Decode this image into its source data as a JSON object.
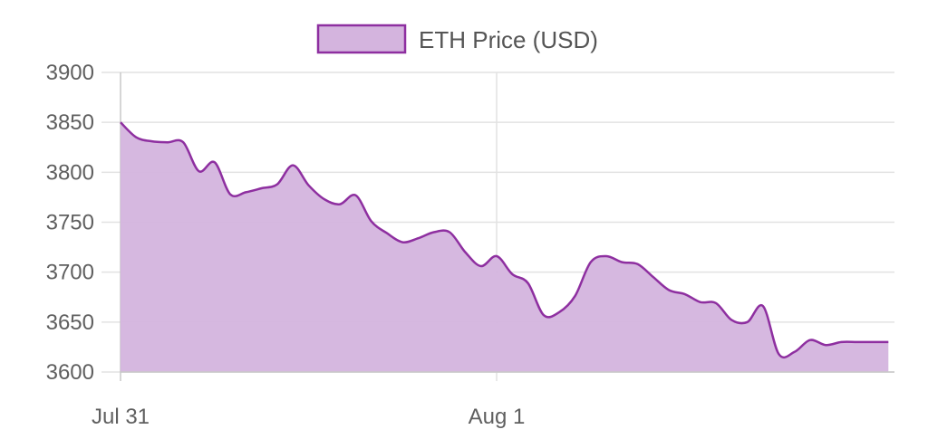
{
  "chart_data": {
    "type": "area",
    "title": "",
    "xlabel": "",
    "ylabel": "",
    "ylim": [
      3600,
      3900
    ],
    "y_ticks": [
      3900,
      3850,
      3800,
      3750,
      3700,
      3650,
      3600
    ],
    "x_ticks": [
      {
        "label": "Jul 31",
        "value": 0
      },
      {
        "label": "Aug 1",
        "value": 24
      }
    ],
    "legend": {
      "position": "top-center",
      "label": "ETH Price (USD)"
    },
    "grid": true,
    "colors": {
      "line": "#8e2fa0",
      "fill": "#d4b4de",
      "grid": "#e2e2e2",
      "axis": "#c8c8c8"
    },
    "series": [
      {
        "name": "ETH Price (USD)",
        "x": [
          0,
          1,
          2,
          3,
          4,
          5,
          6,
          7,
          8,
          9,
          10,
          11,
          12,
          13,
          14,
          15,
          16,
          17,
          18,
          19,
          20,
          21,
          22,
          23,
          24,
          25,
          26,
          27,
          28,
          29,
          30,
          31,
          32,
          33,
          34,
          35,
          36,
          37,
          38,
          39,
          40,
          41,
          42,
          43,
          44,
          45,
          46,
          47,
          48,
          49
        ],
        "y": [
          3850,
          3835,
          3831,
          3830,
          3830,
          3801,
          3810,
          3778,
          3780,
          3784,
          3788,
          3807,
          3787,
          3773,
          3768,
          3777,
          3751,
          3739,
          3730,
          3734,
          3740,
          3740,
          3720,
          3706,
          3716,
          3698,
          3689,
          3657,
          3660,
          3676,
          3710,
          3716,
          3710,
          3708,
          3695,
          3682,
          3678,
          3670,
          3669,
          3652,
          3650,
          3666,
          3618,
          3620,
          3632,
          3627,
          3630,
          3630,
          3630,
          3630
        ]
      }
    ]
  }
}
